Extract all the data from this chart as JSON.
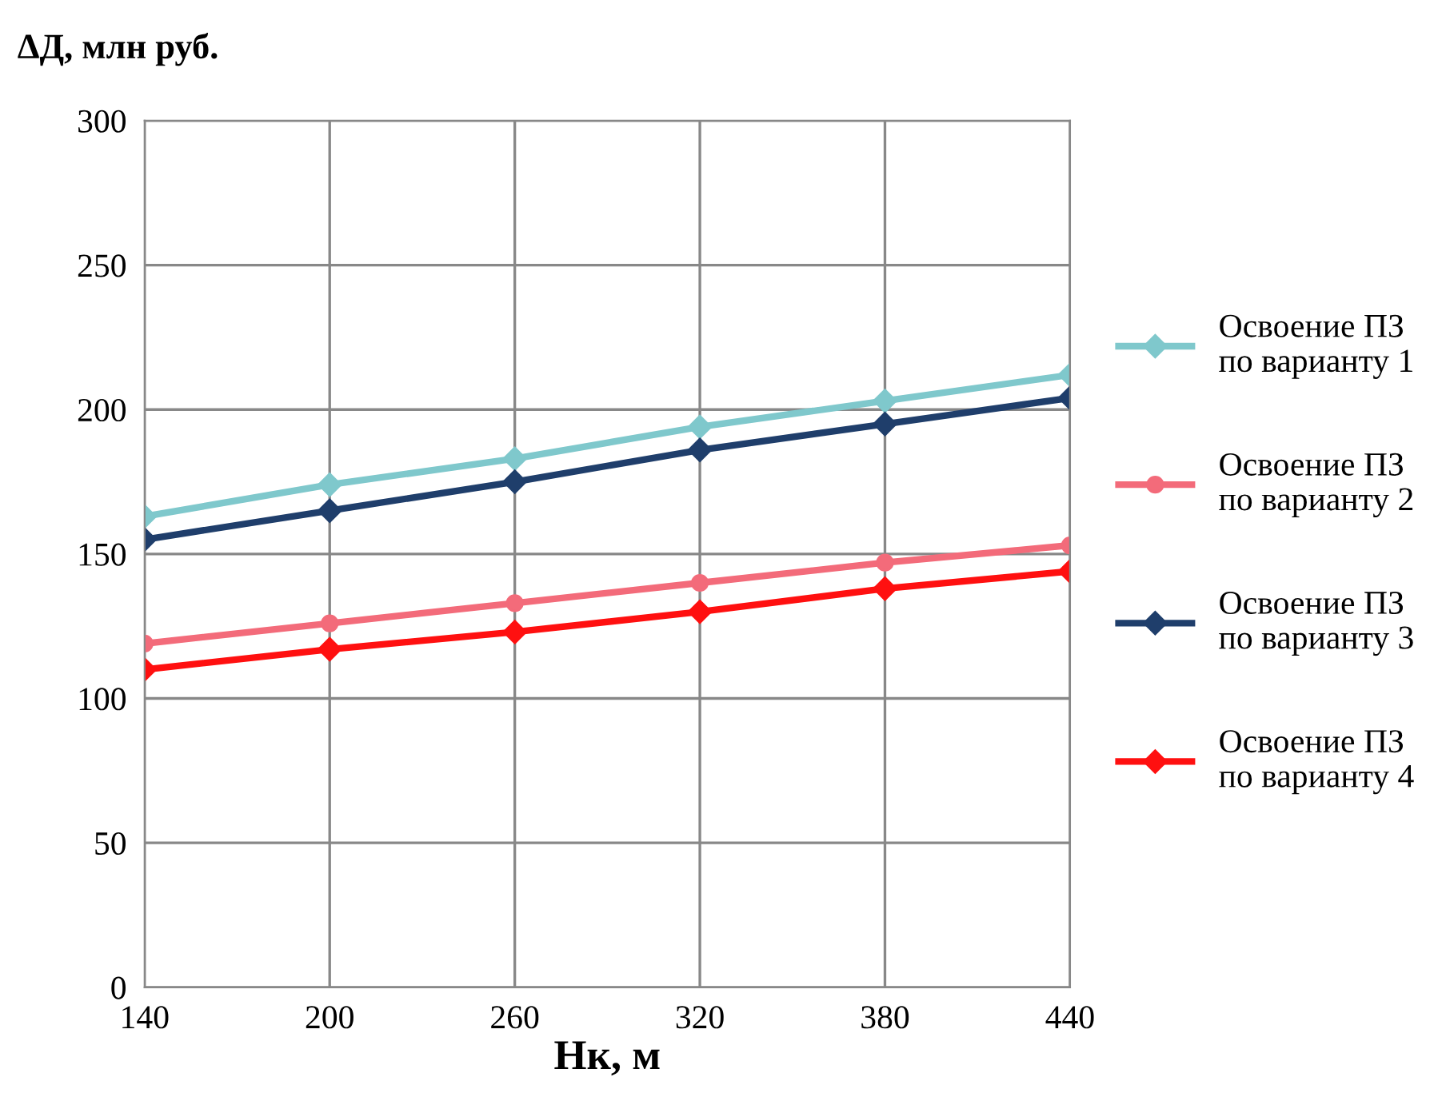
{
  "chart_data": {
    "type": "line",
    "ylabel": "ΔД, млн руб.",
    "xlabel": "Нк, м",
    "x": [
      140,
      200,
      260,
      320,
      380,
      440
    ],
    "series": [
      {
        "name": "Освоение ПЗ\nпо варианту 1",
        "color": "#7fc8cc",
        "marker": "diamond",
        "values": [
          163,
          174,
          183,
          194,
          203,
          212
        ]
      },
      {
        "name": "Освоение ПЗ\nпо варианту 2",
        "color": "#f36b7a",
        "marker": "circle",
        "values": [
          119,
          126,
          133,
          140,
          147,
          153
        ]
      },
      {
        "name": "Освоение ПЗ\nпо варианту 3",
        "color": "#1f3e6b",
        "marker": "diamond",
        "values": [
          155,
          165,
          175,
          186,
          195,
          204
        ]
      },
      {
        "name": "Освоение ПЗ\nпо варианту 4",
        "color": "#ff1010",
        "marker": "diamond",
        "values": [
          110,
          117,
          123,
          130,
          138,
          144
        ]
      }
    ],
    "xlim": [
      140,
      440
    ],
    "xticks": [
      140,
      200,
      260,
      320,
      380,
      440
    ],
    "ylim": [
      0,
      300
    ],
    "yticks": [
      0,
      50,
      100,
      150,
      200,
      250,
      300
    ],
    "grid": true,
    "legend": "right",
    "line_style": "solid"
  }
}
